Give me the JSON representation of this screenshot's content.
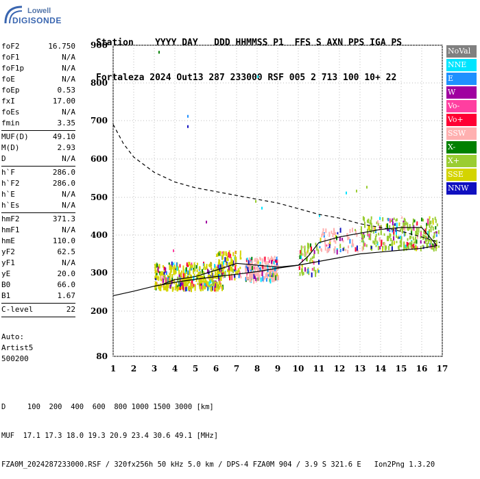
{
  "logo": {
    "line1": "Lowell",
    "line2": "DIGISONDE"
  },
  "header": {
    "row1": "Station    YYYY DAY   DDD HHMMSS P1  FFS S AXN PPS IGA PS",
    "row2": "Fortaleza 2024 Out13 287 233000 RSF 005 2 713 100 10+ 22"
  },
  "params": [
    {
      "k": "foF2",
      "v": "16.750"
    },
    {
      "k": "foF1",
      "v": "N/A"
    },
    {
      "k": "foF1p",
      "v": "N/A"
    },
    {
      "k": "foE",
      "v": "N/A"
    },
    {
      "k": "foEp",
      "v": "0.53"
    },
    {
      "k": "fxI",
      "v": "17.00"
    },
    {
      "k": "foEs",
      "v": "N/A"
    },
    {
      "k": "fmin",
      "v": "3.35"
    },
    {
      "sep": true
    },
    {
      "k": "MUF(D)",
      "v": "49.10"
    },
    {
      "k": "M(D)",
      "v": "2.93"
    },
    {
      "k": "D",
      "v": "N/A"
    },
    {
      "sep": true
    },
    {
      "k": "h`F",
      "v": "286.0"
    },
    {
      "k": "h`F2",
      "v": "286.0"
    },
    {
      "k": "h`E",
      "v": "N/A"
    },
    {
      "k": "h`Es",
      "v": "N/A"
    },
    {
      "sep": true
    },
    {
      "k": "hmF2",
      "v": "371.3"
    },
    {
      "k": "hmF1",
      "v": "N/A"
    },
    {
      "k": "hmE",
      "v": "110.0"
    },
    {
      "k": "yF2",
      "v": "62.5"
    },
    {
      "k": "yF1",
      "v": "N/A"
    },
    {
      "k": "yE",
      "v": "20.0"
    },
    {
      "k": "B0",
      "v": "66.0"
    },
    {
      "k": "B1",
      "v": "1.67"
    },
    {
      "sep": true
    },
    {
      "k": "C-level",
      "v": "22"
    },
    {
      "sep": true
    }
  ],
  "auto": {
    "line1": "Auto:",
    "line2": "Artist5",
    "line3": "500200"
  },
  "legend": [
    {
      "label": "NoVal",
      "color": "#808080"
    },
    {
      "label": "NNE",
      "color": "#00e5ff"
    },
    {
      "label": "E",
      "color": "#1e90ff"
    },
    {
      "label": "W",
      "color": "#a000a0"
    },
    {
      "label": "Vo-",
      "color": "#ff3fa0"
    },
    {
      "label": "Vo+",
      "color": "#ff0033"
    },
    {
      "label": "SSW",
      "color": "#ffb0b0"
    },
    {
      "label": "X-",
      "color": "#008000"
    },
    {
      "label": "X+",
      "color": "#9acd32"
    },
    {
      "label": "SSE",
      "color": "#d4d400"
    },
    {
      "label": "NNW",
      "color": "#1010c0"
    }
  ],
  "footer": {
    "line1": "D     100  200  400  600  800 1000 1500 3000 [km]",
    "line2": "MUF  17.1 17.3 18.0 19.3 20.9 23.4 30.6 49.1 [MHz]",
    "line3": "FZA0M_2024287233000.RSF / 320fx256h 50 kHz 5.0 km / DPS-4 FZA0M 904 / 3.9 S 321.6 E   Ion2Png 1.3.20"
  },
  "chart_data": {
    "type": "scatter",
    "x_ticks": [
      "1",
      "2",
      "3",
      "4",
      "5",
      "6",
      "7",
      "8",
      "9",
      "10",
      "11",
      "12",
      "13",
      "14",
      "15",
      "16",
      "17"
    ],
    "y_ticks": [
      "80",
      "200",
      "300",
      "400",
      "500",
      "600",
      "700",
      "800",
      "900"
    ],
    "xlim": [
      1,
      17
    ],
    "ylim": [
      80,
      900
    ],
    "grid": true,
    "profile": [
      [
        3.4,
        270
      ],
      [
        4.0,
        282
      ],
      [
        5.0,
        290
      ],
      [
        5.6,
        300
      ],
      [
        6.2,
        310
      ],
      [
        7.0,
        325
      ],
      [
        8.0,
        320
      ],
      [
        9.0,
        315
      ],
      [
        10.0,
        320
      ],
      [
        10.5,
        345
      ],
      [
        11.0,
        380
      ],
      [
        12.0,
        395
      ],
      [
        13.0,
        405
      ],
      [
        14.0,
        415
      ],
      [
        15.0,
        420
      ],
      [
        16.0,
        420
      ],
      [
        16.75,
        371
      ]
    ],
    "trace_lower": [
      [
        1,
        240
      ],
      [
        2,
        252
      ],
      [
        3,
        265
      ],
      [
        4,
        275
      ],
      [
        5,
        283
      ],
      [
        6,
        290
      ],
      [
        7,
        296
      ],
      [
        8,
        303
      ],
      [
        9,
        312
      ],
      [
        10,
        320
      ],
      [
        11,
        330
      ],
      [
        12,
        340
      ],
      [
        13,
        350
      ],
      [
        14,
        355
      ],
      [
        15,
        360
      ],
      [
        16,
        365
      ],
      [
        16.75,
        372
      ]
    ],
    "mufline": [
      [
        1,
        690
      ],
      [
        1.5,
        640
      ],
      [
        2,
        605
      ],
      [
        3,
        565
      ],
      [
        4,
        540
      ],
      [
        5,
        525
      ],
      [
        6,
        515
      ],
      [
        7,
        505
      ],
      [
        8,
        495
      ],
      [
        9,
        485
      ],
      [
        10,
        470
      ],
      [
        11,
        455
      ],
      [
        12,
        445
      ],
      [
        13,
        430
      ],
      [
        14,
        420
      ],
      [
        15,
        410
      ],
      [
        16,
        395
      ],
      [
        16.9,
        380
      ]
    ],
    "echo_clusters": [
      {
        "fmin": 3.0,
        "fmax": 6.3,
        "hmin": 262,
        "hmax": 330,
        "n": 450,
        "main": "#d4d400"
      },
      {
        "fmin": 6.0,
        "fmax": 7.2,
        "hmin": 290,
        "hmax": 360,
        "n": 120,
        "main": "#d4d400"
      },
      {
        "fmin": 7.4,
        "fmax": 9.0,
        "hmin": 285,
        "hmax": 345,
        "n": 200,
        "main": "#ffb0b0"
      },
      {
        "fmin": 10.0,
        "fmax": 11.0,
        "hmin": 300,
        "hmax": 380,
        "n": 60,
        "main": "#9acd32"
      },
      {
        "fmin": 11.0,
        "fmax": 13.0,
        "hmin": 360,
        "hmax": 420,
        "n": 70,
        "main": "#ffb0b0"
      },
      {
        "fmin": 13.0,
        "fmax": 16.8,
        "hmin": 370,
        "hmax": 450,
        "n": 300,
        "main": "#9acd32"
      }
    ],
    "isolated_points": [
      [
        3.2,
        885
      ],
      [
        4.6,
        715
      ],
      [
        4.6,
        688
      ],
      [
        8.0,
        820
      ],
      [
        7.9,
        493
      ],
      [
        8.2,
        475
      ],
      [
        11.0,
        455
      ],
      [
        12.3,
        515
      ],
      [
        12.8,
        520
      ],
      [
        13.3,
        530
      ],
      [
        3.9,
        362
      ],
      [
        5.5,
        438
      ]
    ]
  }
}
